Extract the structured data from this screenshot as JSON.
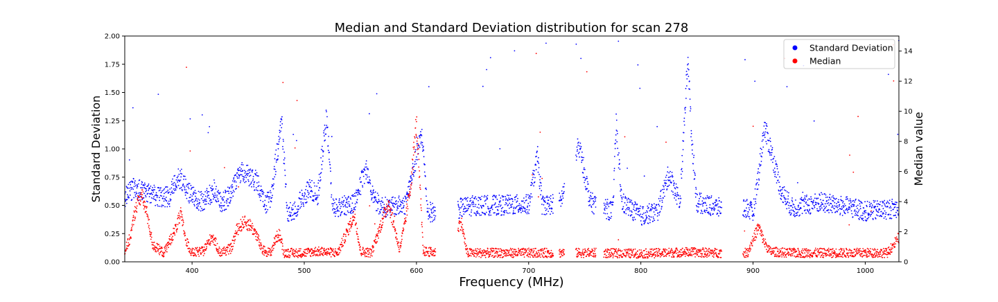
{
  "chart_data": {
    "type": "scatter",
    "title": "Median and Standard Deviation distribution for scan 278",
    "xlabel": "Frequency (MHz)",
    "ylabel_left": "Standard Deviation",
    "ylabel_right": "Median value",
    "xlim": [
      340,
      1030
    ],
    "ylim_left": [
      0,
      2.0
    ],
    "ylim_right": [
      0,
      15
    ],
    "x_ticks": [
      400,
      500,
      600,
      700,
      800,
      900,
      1000
    ],
    "y_ticks_left": [
      "0.00",
      "0.25",
      "0.50",
      "0.75",
      "1.00",
      "1.25",
      "1.50",
      "1.75",
      "2.00"
    ],
    "y_ticks_right": [
      "0",
      "2",
      "4",
      "6",
      "8",
      "10",
      "12",
      "14"
    ],
    "grid": false,
    "legend_position": "upper-right",
    "series": [
      {
        "name": "Standard Deviation",
        "axis": "left",
        "color": "#0000ff",
        "profile": [
          [
            340,
            0.55
          ],
          [
            348,
            0.62
          ],
          [
            355,
            0.6
          ],
          [
            362,
            0.58
          ],
          [
            370,
            0.55
          ],
          [
            380,
            0.55
          ],
          [
            385,
            0.68
          ],
          [
            390,
            0.72
          ],
          [
            395,
            0.62
          ],
          [
            400,
            0.55
          ],
          [
            410,
            0.5
          ],
          [
            420,
            0.62
          ],
          [
            425,
            0.5
          ],
          [
            430,
            0.52
          ],
          [
            435,
            0.6
          ],
          [
            440,
            0.72
          ],
          [
            445,
            0.76
          ],
          [
            450,
            0.74
          ],
          [
            458,
            0.68
          ],
          [
            465,
            0.48
          ],
          [
            470,
            0.55
          ],
          [
            475,
            0.88
          ],
          [
            480,
            1.2
          ],
          [
            485,
            0.42
          ],
          [
            490,
            0.42
          ],
          [
            505,
            0.62
          ],
          [
            512,
            0.55
          ],
          [
            520,
            1.25
          ],
          [
            525,
            0.48
          ],
          [
            530,
            0.45
          ],
          [
            545,
            0.5
          ],
          [
            555,
            0.8
          ],
          [
            560,
            0.6
          ],
          [
            566,
            0.48
          ],
          [
            575,
            0.45
          ],
          [
            590,
            0.48
          ],
          [
            600,
            0.9
          ],
          [
            605,
            1.1
          ],
          [
            610,
            0.42
          ],
          [
            620,
            0.4
          ],
          [
            640,
            0.45
          ],
          [
            650,
            0.47
          ],
          [
            700,
            0.48
          ],
          [
            708,
            0.9
          ],
          [
            712,
            0.48
          ],
          [
            720,
            0.48
          ],
          [
            728,
            0.5
          ],
          [
            745,
            1.0
          ],
          [
            755,
            0.5
          ],
          [
            775,
            0.42
          ],
          [
            778,
            1.2
          ],
          [
            783,
            0.5
          ],
          [
            800,
            0.38
          ],
          [
            815,
            0.42
          ],
          [
            825,
            0.75
          ],
          [
            835,
            0.5
          ],
          [
            842,
            1.8
          ],
          [
            845,
            1.1
          ],
          [
            850,
            0.5
          ],
          [
            870,
            0.45
          ],
          [
            895,
            0.45
          ],
          [
            900,
            0.4
          ],
          [
            905,
            0.75
          ],
          [
            910,
            1.15
          ],
          [
            915,
            1.0
          ],
          [
            925,
            0.6
          ],
          [
            935,
            0.45
          ],
          [
            960,
            0.5
          ],
          [
            990,
            0.45
          ],
          [
            1000,
            0.42
          ],
          [
            1030,
            0.45
          ]
        ],
        "gaps": [
          [
            617,
            637
          ],
          [
            722,
            727
          ],
          [
            732,
            742
          ],
          [
            760,
            767
          ],
          [
            872,
            891
          ]
        ]
      },
      {
        "name": "Median",
        "axis": "right",
        "color": "#ff0000",
        "profile": [
          [
            340,
            0.6
          ],
          [
            345,
            1.5
          ],
          [
            350,
            3.5
          ],
          [
            355,
            4.3
          ],
          [
            360,
            3.0
          ],
          [
            365,
            1.0
          ],
          [
            375,
            0.5
          ],
          [
            385,
            2.0
          ],
          [
            390,
            3.0
          ],
          [
            395,
            1.2
          ],
          [
            400,
            0.5
          ],
          [
            410,
            0.6
          ],
          [
            418,
            1.6
          ],
          [
            425,
            0.5
          ],
          [
            435,
            0.8
          ],
          [
            440,
            2.0
          ],
          [
            446,
            2.5
          ],
          [
            452,
            2.3
          ],
          [
            458,
            1.6
          ],
          [
            462,
            0.7
          ],
          [
            470,
            0.5
          ],
          [
            475,
            1.5
          ],
          [
            478,
            1.7
          ],
          [
            482,
            0.5
          ],
          [
            500,
            0.5
          ],
          [
            510,
            0.6
          ],
          [
            530,
            0.5
          ],
          [
            545,
            3.0
          ],
          [
            550,
            0.6
          ],
          [
            560,
            0.5
          ],
          [
            575,
            3.8
          ],
          [
            585,
            0.7
          ],
          [
            590,
            2.5
          ],
          [
            595,
            5.0
          ],
          [
            600,
            9.0
          ],
          [
            603,
            5.0
          ],
          [
            606,
            0.6
          ],
          [
            620,
            0.5
          ],
          [
            640,
            2.5
          ],
          [
            645,
            0.5
          ],
          [
            700,
            0.5
          ],
          [
            760,
            0.5
          ],
          [
            800,
            0.45
          ],
          [
            840,
            0.55
          ],
          [
            870,
            0.5
          ],
          [
            895,
            0.5
          ],
          [
            905,
            2.2
          ],
          [
            910,
            1.2
          ],
          [
            915,
            0.6
          ],
          [
            930,
            0.5
          ],
          [
            1020,
            0.5
          ],
          [
            1030,
            1.5
          ]
        ],
        "gaps": [
          [
            617,
            637
          ],
          [
            722,
            727
          ],
          [
            732,
            742
          ],
          [
            760,
            767
          ],
          [
            872,
            891
          ]
        ]
      }
    ]
  }
}
